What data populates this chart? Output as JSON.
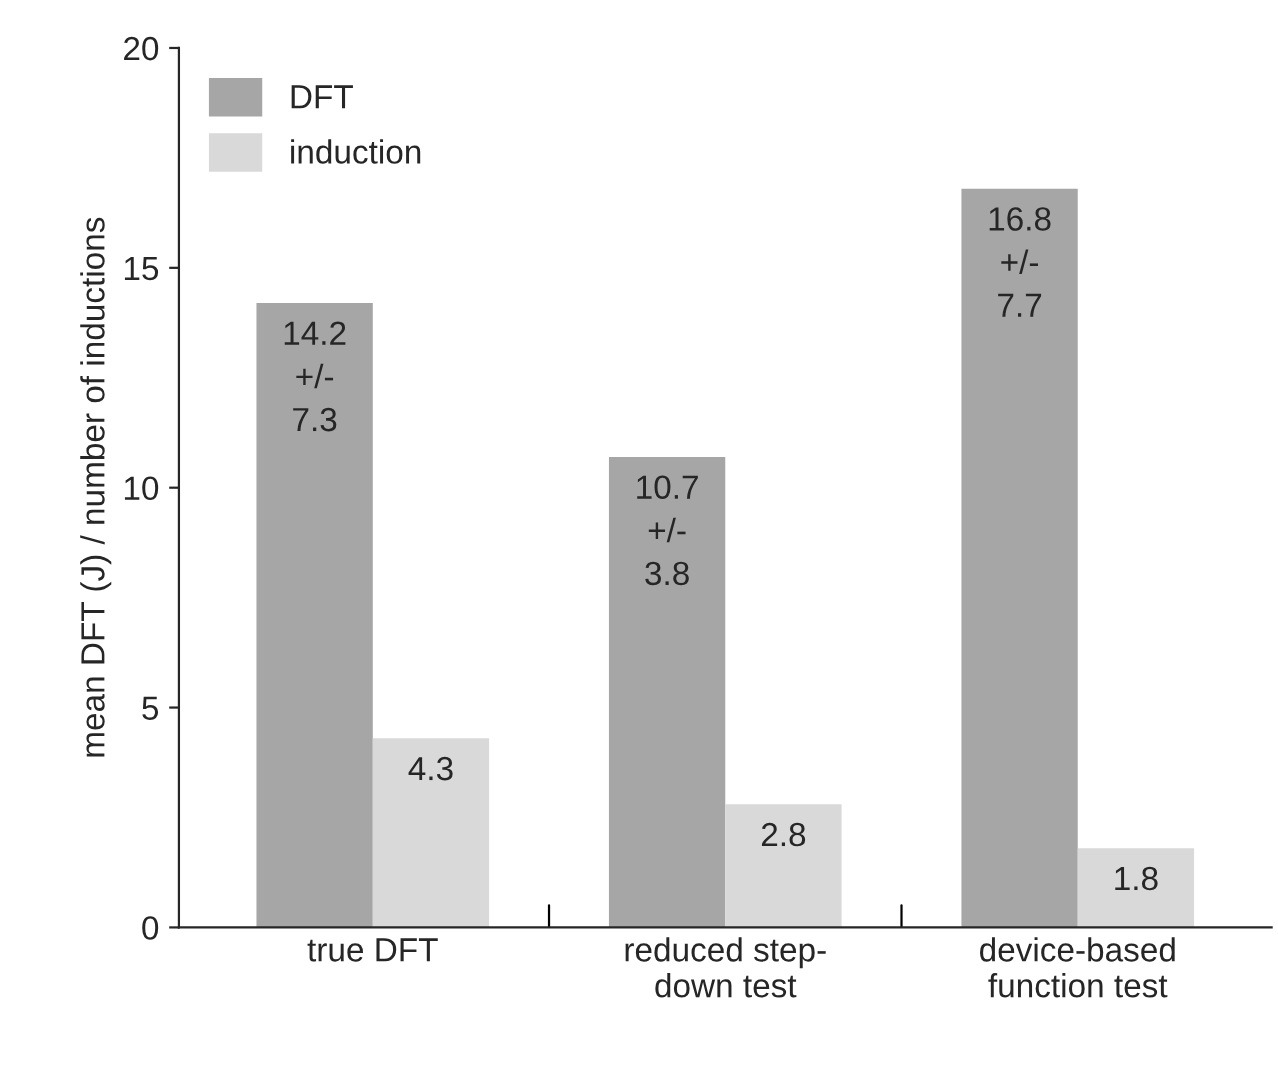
{
  "chart_data": {
    "type": "bar",
    "ylabel": "mean DFT (J) / number of inductions",
    "categories": [
      "true DFT",
      "reduced step-\ndown test",
      "device-based\nfunction test"
    ],
    "series": [
      {
        "name": "DFT",
        "color": "#a6a6a6",
        "values": [
          14.2,
          10.7,
          16.8
        ],
        "value_labels": [
          "14.2\n+/-\n7.3",
          "10.7\n+/-\n3.8",
          "16.8\n+/-\n7.7"
        ]
      },
      {
        "name": "induction",
        "color": "#d9d9d9",
        "values": [
          4.3,
          2.8,
          1.8
        ],
        "value_labels": [
          "4.3",
          "2.8",
          "1.8"
        ]
      }
    ],
    "ylim": [
      0,
      20
    ],
    "yticks": [
      0,
      5,
      10,
      15,
      20
    ],
    "grid": false,
    "legend": "top left"
  }
}
